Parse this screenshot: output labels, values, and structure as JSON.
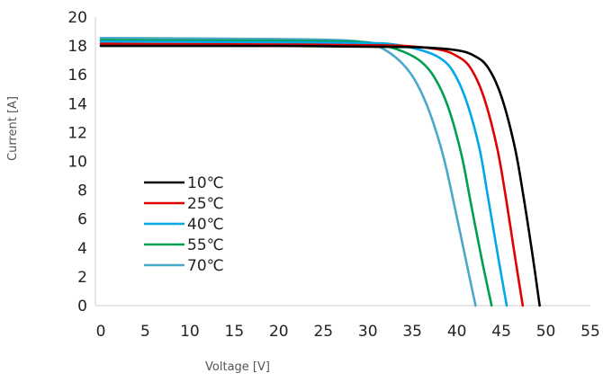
{
  "chart_data": {
    "type": "line",
    "title": "",
    "xlabel": "Voltage [V]",
    "ylabel": "Current [A]",
    "xlim": [
      0,
      55
    ],
    "ylim": [
      0,
      20
    ],
    "xticks": [
      0,
      5,
      10,
      15,
      20,
      25,
      30,
      35,
      40,
      45,
      50,
      55
    ],
    "yticks": [
      0,
      2,
      4,
      6,
      8,
      10,
      12,
      14,
      16,
      18,
      20
    ],
    "grid": false,
    "legend_position": "center-left",
    "series": [
      {
        "name": "10℃",
        "color": "#000000",
        "x": [
          0,
          10,
          20,
          30,
          36,
          40,
          42,
          43.5,
          45,
          46.5,
          47.5,
          48.5,
          49.3
        ],
        "y": [
          18.0,
          18.0,
          18.0,
          17.95,
          17.9,
          17.7,
          17.3,
          16.5,
          14.5,
          11.0,
          7.5,
          3.5,
          0
        ]
      },
      {
        "name": "25℃",
        "color": "#e00000",
        "x": [
          0,
          10,
          20,
          30,
          34,
          38,
          40,
          41.5,
          43,
          44.5,
          45.5,
          46.5,
          47.4
        ],
        "y": [
          18.15,
          18.12,
          18.1,
          18.05,
          18.0,
          17.75,
          17.3,
          16.5,
          14.5,
          11.0,
          7.5,
          3.5,
          0
        ]
      },
      {
        "name": "40℃",
        "color": "#00a8e8",
        "x": [
          0,
          10,
          20,
          30,
          33,
          36,
          38,
          39.5,
          41,
          42.5,
          43.5,
          44.6,
          45.6
        ],
        "y": [
          18.3,
          18.28,
          18.25,
          18.2,
          18.1,
          17.7,
          17.2,
          16.3,
          14.3,
          11.0,
          7.5,
          3.5,
          0
        ]
      },
      {
        "name": "55℃",
        "color": "#00a050",
        "x": [
          0,
          10,
          20,
          28,
          31,
          34,
          36,
          37.5,
          39,
          40.5,
          41.6,
          42.8,
          43.9
        ],
        "y": [
          18.4,
          18.38,
          18.35,
          18.3,
          18.15,
          17.6,
          16.9,
          15.8,
          13.8,
          10.5,
          7.0,
          3.2,
          0
        ]
      },
      {
        "name": "70℃",
        "color": "#4aa8c8",
        "x": [
          0,
          10,
          20,
          27,
          30,
          32,
          34,
          35.5,
          37,
          38.5,
          39.7,
          41.0,
          42.1
        ],
        "y": [
          18.55,
          18.52,
          18.48,
          18.4,
          18.2,
          17.7,
          16.7,
          15.4,
          13.3,
          10.3,
          7.0,
          3.2,
          0
        ]
      }
    ]
  }
}
